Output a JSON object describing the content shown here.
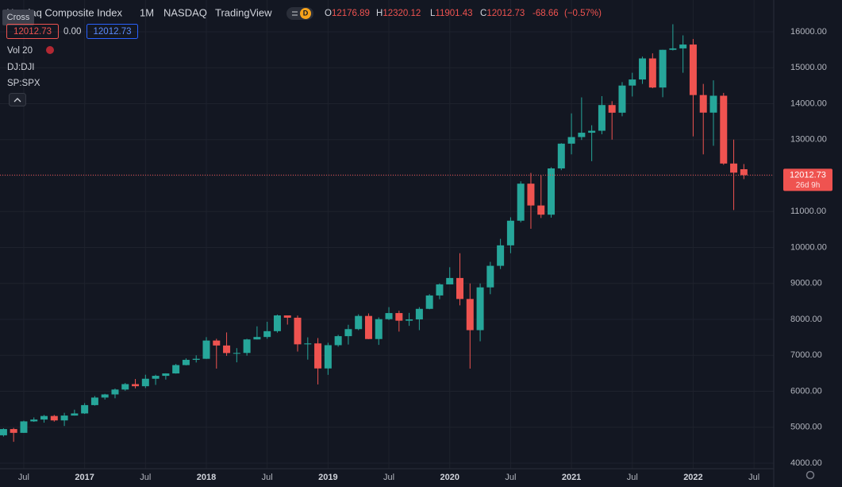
{
  "header": {
    "cross": "Cross",
    "title": "Nasdaq Composite Index",
    "interval": "1M",
    "exchange": "NASDAQ",
    "source": "TradingView",
    "badge": "D",
    "ohlc": [
      {
        "label": "O",
        "value": 12176.89
      },
      {
        "label": "H",
        "value": 12320.12
      },
      {
        "label": "L",
        "value": 11901.43
      },
      {
        "label": "C",
        "value": 12012.73
      }
    ],
    "change": -68.66,
    "change_pct": {
      "value": -0.57,
      "label": "(−0.57%)"
    }
  },
  "left_panel": {
    "spread": {
      "value": 0,
      "label": "0.00"
    },
    "indicators": [
      "Vol 20",
      "DJ:DJI",
      "SP:SPX"
    ]
  },
  "chart_data": {
    "type": "candlestick",
    "up_color": "#26a69a",
    "down_color": "#ef5350",
    "grid": true,
    "countdown": "26d 9h",
    "x": [
      "2016-05",
      "2016-06",
      "2016-07",
      "2016-08",
      "2016-09",
      "2016-10",
      "2016-11",
      "2016-12",
      "2017-01",
      "2017-02",
      "2017-03",
      "2017-04",
      "2017-05",
      "2017-06",
      "2017-07",
      "2017-08",
      "2017-09",
      "2017-10",
      "2017-11",
      "2017-12",
      "2018-01",
      "2018-02",
      "2018-03",
      "2018-04",
      "2018-05",
      "2018-06",
      "2018-07",
      "2018-08",
      "2018-09",
      "2018-10",
      "2018-11",
      "2018-12",
      "2019-01",
      "2019-02",
      "2019-03",
      "2019-04",
      "2019-05",
      "2019-06",
      "2019-07",
      "2019-08",
      "2019-09",
      "2019-10",
      "2019-11",
      "2019-12",
      "2020-01",
      "2020-02",
      "2020-03",
      "2020-04",
      "2020-05",
      "2020-06",
      "2020-07",
      "2020-08",
      "2020-09",
      "2020-10",
      "2020-11",
      "2020-12",
      "2021-01",
      "2021-02",
      "2021-03",
      "2021-04",
      "2021-05",
      "2021-06",
      "2021-07",
      "2021-08",
      "2021-09",
      "2021-10",
      "2021-11",
      "2021-12",
      "2022-01",
      "2022-02",
      "2022-03",
      "2022-04",
      "2022-05",
      "2022-06"
    ],
    "open": [
      4775,
      4948,
      4843,
      5162,
      5213,
      5312,
      5189,
      5324,
      5383,
      5615,
      5825,
      5912,
      6048,
      6199,
      6140,
      6348,
      6429,
      6496,
      6728,
      6874,
      6903,
      7411,
      7273,
      7063,
      7066,
      7442,
      7510,
      7672,
      8110,
      8046,
      7306,
      7331,
      6635,
      7282,
      7533,
      7729,
      8095,
      7453,
      8006,
      8175,
      7963,
      7999,
      8292,
      8665,
      8973,
      9151,
      8567,
      7700,
      8890,
      9490,
      10059,
      10745,
      11775,
      11168,
      10912,
      12199,
      12888,
      13071,
      13192,
      13247,
      13962,
      13749,
      14504,
      14673,
      15259,
      14449,
      15498,
      15538,
      15645,
      14240,
      13751,
      14221,
      12335,
      12176.89
    ],
    "high": [
      4970,
      4980,
      5181,
      5272,
      5342,
      5343,
      5400,
      5487,
      5670,
      5867,
      5928,
      6075,
      6230,
      6341,
      6460,
      6460,
      6500,
      6760,
      6915,
      7000,
      7505,
      7460,
      7637,
      7200,
      7460,
      7806,
      7933,
      8133,
      8110,
      8107,
      7500,
      7480,
      7350,
      7570,
      7850,
      8140,
      8165,
      8055,
      8340,
      8240,
      8180,
      8340,
      8700,
      9000,
      9450,
      9840,
      9000,
      9000,
      9600,
      10240,
      10840,
      11840,
      12075,
      12000,
      12230,
      12900,
      13730,
      14175,
      13400,
      14210,
      14070,
      14600,
      14860,
      15310,
      15400,
      15500,
      16210,
      15900,
      15800,
      14550,
      14650,
      14300,
      13000,
      12320.12
    ],
    "low": [
      4739,
      4594,
      4840,
      5148,
      5126,
      5155,
      5034,
      5322,
      5370,
      5600,
      5770,
      5805,
      6015,
      6080,
      6090,
      6177,
      6325,
      6490,
      6720,
      6800,
      6900,
      6630,
      6985,
      6805,
      6990,
      7440,
      7460,
      7630,
      7855,
      7105,
      6880,
      6190,
      6457,
      7240,
      7300,
      7700,
      7450,
      7290,
      7980,
      7660,
      7820,
      7700,
      8280,
      8560,
      8980,
      8390,
      6630,
      7390,
      8700,
      9400,
      9840,
      10700,
      10520,
      10820,
      10830,
      12150,
      12590,
      12990,
      12400,
      13150,
      13000,
      13650,
      14200,
      14550,
      14430,
      14180,
      15480,
      14860,
      13090,
      12590,
      12830,
      12300,
      11040,
      11901.43
    ],
    "close": [
      4948,
      4843,
      5162,
      5213,
      5312,
      5189,
      5324,
      5383,
      5615,
      5825,
      5912,
      6048,
      6199,
      6140,
      6348,
      6429,
      6496,
      6728,
      6874,
      6903,
      7411,
      7273,
      7063,
      7066,
      7442,
      7510,
      7672,
      8110,
      8046,
      7306,
      7331,
      6635,
      7282,
      7533,
      7729,
      8095,
      7453,
      8006,
      8175,
      7963,
      7999,
      8292,
      8665,
      8973,
      9151,
      8567,
      7700,
      8890,
      9490,
      10059,
      10745,
      11775,
      11168,
      10912,
      12199,
      12888,
      13071,
      13192,
      13247,
      13962,
      13749,
      14504,
      14673,
      15259,
      14449,
      15498,
      15538,
      15645,
      14240,
      13751,
      14221,
      12335,
      12081,
      12012.73
    ],
    "ylim": [
      3845,
      16884
    ],
    "yticks": [
      {
        "value": 4000,
        "label": "4000.00"
      },
      {
        "value": 5000,
        "label": "5000.00"
      },
      {
        "value": 6000,
        "label": "6000.00"
      },
      {
        "value": 7000,
        "label": "7000.00"
      },
      {
        "value": 8000,
        "label": "8000.00"
      },
      {
        "value": 9000,
        "label": "9000.00"
      },
      {
        "value": 10000,
        "label": "10000.00"
      },
      {
        "value": 11000,
        "label": "11000.00"
      },
      {
        "value": 12000,
        "label": "12000.00"
      },
      {
        "value": 13000,
        "label": "13000.00"
      },
      {
        "value": 14000,
        "label": "14000.00"
      },
      {
        "value": 15000,
        "label": "15000.00"
      },
      {
        "value": 16000,
        "label": "16000.00"
      }
    ],
    "xticks": [
      {
        "value": "2016-07",
        "label": "Jul"
      },
      {
        "value": "2017-01",
        "label": "2017"
      },
      {
        "value": "2017-07",
        "label": "Jul"
      },
      {
        "value": "2018-01",
        "label": "2018"
      },
      {
        "value": "2018-07",
        "label": "Jul"
      },
      {
        "value": "2019-01",
        "label": "2019"
      },
      {
        "value": "2019-07",
        "label": "Jul"
      },
      {
        "value": "2020-01",
        "label": "2020"
      },
      {
        "value": "2020-07",
        "label": "Jul"
      },
      {
        "value": "2021-01",
        "label": "2021"
      },
      {
        "value": "2021-07",
        "label": "Jul"
      },
      {
        "value": "2022-01",
        "label": "2022"
      },
      {
        "value": "2022-07",
        "label": "Jul"
      }
    ]
  }
}
